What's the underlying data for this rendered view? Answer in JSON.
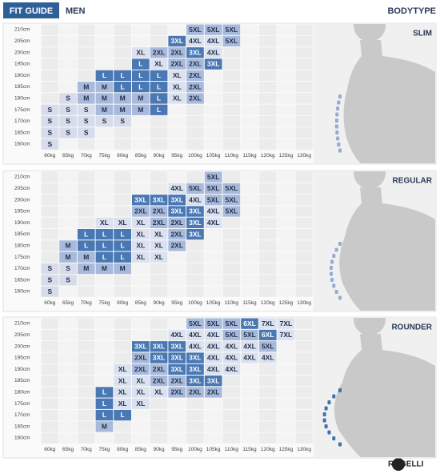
{
  "header": {
    "title": "FIT GUIDE",
    "subtitle": "MEN",
    "bodytype": "BODYTYPE"
  },
  "heights": [
    "210cm",
    "205cm",
    "200cm",
    "195cm",
    "190cm",
    "185cm",
    "180cm",
    "175cm",
    "170cm",
    "165cm",
    "160cm"
  ],
  "weights": [
    "60kg",
    "65kg",
    "70kg",
    "75kg",
    "80kg",
    "85kg",
    "90kg",
    "95kg",
    "100kg",
    "105kg",
    "110kg",
    "115kg",
    "120kg",
    "125kg",
    "130kg"
  ],
  "size_colors": {
    "S": "#d6dcea",
    "M": "#a8badb",
    "L": "#4a78b4",
    "XL": "#dbe1ee",
    "2XL": "#a8badb",
    "3XL": "#4a78b4",
    "4XL": "#dbe1ee",
    "5XL": "#a8badb",
    "6XL": "#4a78b4",
    "7XL": "#dbe1ee"
  },
  "panels": [
    {
      "title": "SLIM",
      "rows": [
        [
          null,
          null,
          null,
          null,
          null,
          null,
          null,
          null,
          "5XL",
          "5XL",
          "5XL",
          null,
          null,
          null,
          null
        ],
        [
          null,
          null,
          null,
          null,
          null,
          null,
          null,
          "3XL",
          "4XL",
          "4XL",
          "5XL",
          null,
          null,
          null,
          null
        ],
        [
          null,
          null,
          null,
          null,
          null,
          "XL",
          "2XL",
          "2XL",
          "3XL",
          "4XL",
          null,
          null,
          null,
          null,
          null
        ],
        [
          null,
          null,
          null,
          null,
          null,
          "L",
          "XL",
          "2XL",
          "2XL",
          "3XL",
          null,
          null,
          null,
          null,
          null
        ],
        [
          null,
          null,
          null,
          "L",
          "L",
          "L",
          "L",
          "XL",
          "2XL",
          null,
          null,
          null,
          null,
          null,
          null
        ],
        [
          null,
          null,
          "M",
          "M",
          "L",
          "L",
          "L",
          "XL",
          "2XL",
          null,
          null,
          null,
          null,
          null,
          null
        ],
        [
          null,
          "S",
          "M",
          "M",
          "M",
          "M",
          "L",
          "XL",
          "2XL",
          null,
          null,
          null,
          null,
          null,
          null
        ],
        [
          "S",
          "S",
          "S",
          "M",
          "M",
          "M",
          "L",
          null,
          null,
          null,
          null,
          null,
          null,
          null,
          null
        ],
        [
          "S",
          "S",
          "S",
          "S",
          "S",
          null,
          null,
          null,
          null,
          null,
          null,
          null,
          null,
          null,
          null
        ],
        [
          "S",
          "S",
          "S",
          null,
          null,
          null,
          null,
          null,
          null,
          null,
          null,
          null,
          null,
          null,
          null
        ],
        [
          "S",
          null,
          null,
          null,
          null,
          null,
          null,
          null,
          null,
          null,
          null,
          null,
          null,
          null,
          null
        ]
      ]
    },
    {
      "title": "REGULAR",
      "rows": [
        [
          null,
          null,
          null,
          null,
          null,
          null,
          null,
          null,
          null,
          "5XL",
          null,
          null,
          null,
          null,
          null
        ],
        [
          null,
          null,
          null,
          null,
          null,
          null,
          null,
          "4XL",
          "5XL",
          "5XL",
          "5XL",
          null,
          null,
          null,
          null
        ],
        [
          null,
          null,
          null,
          null,
          null,
          "3XL",
          "3XL",
          "3XL",
          "4XL",
          "5XL",
          "5XL",
          null,
          null,
          null,
          null
        ],
        [
          null,
          null,
          null,
          null,
          null,
          "2XL",
          "2XL",
          "3XL",
          "3XL",
          "4XL",
          "5XL",
          null,
          null,
          null,
          null
        ],
        [
          null,
          null,
          null,
          "XL",
          "XL",
          "XL",
          "2XL",
          "2XL",
          "3XL",
          "4XL",
          null,
          null,
          null,
          null,
          null
        ],
        [
          null,
          null,
          "L",
          "L",
          "L",
          "XL",
          "XL",
          "2XL",
          "3XL",
          null,
          null,
          null,
          null,
          null,
          null
        ],
        [
          null,
          "M",
          "L",
          "L",
          "L",
          "XL",
          "XL",
          "2XL",
          null,
          null,
          null,
          null,
          null,
          null,
          null
        ],
        [
          null,
          "M",
          "M",
          "L",
          "L",
          "XL",
          "XL",
          null,
          null,
          null,
          null,
          null,
          null,
          null,
          null
        ],
        [
          "S",
          "S",
          "M",
          "M",
          "M",
          null,
          null,
          null,
          null,
          null,
          null,
          null,
          null,
          null,
          null
        ],
        [
          "S",
          "S",
          null,
          null,
          null,
          null,
          null,
          null,
          null,
          null,
          null,
          null,
          null,
          null,
          null
        ],
        [
          "S",
          null,
          null,
          null,
          null,
          null,
          null,
          null,
          null,
          null,
          null,
          null,
          null,
          null,
          null
        ]
      ]
    },
    {
      "title": "ROUNDER",
      "rows": [
        [
          null,
          null,
          null,
          null,
          null,
          null,
          null,
          null,
          "5XL",
          "5XL",
          "5XL",
          "6XL",
          "7XL",
          "7XL",
          null
        ],
        [
          null,
          null,
          null,
          null,
          null,
          null,
          null,
          "4XL",
          "4XL",
          "4XL",
          "5XL",
          "5XL",
          "6XL",
          "7XL",
          null
        ],
        [
          null,
          null,
          null,
          null,
          null,
          "3XL",
          "3XL",
          "3XL",
          "4XL",
          "4XL",
          "4XL",
          "4XL",
          "5XL",
          null,
          null
        ],
        [
          null,
          null,
          null,
          null,
          null,
          "2XL",
          "3XL",
          "3XL",
          "3XL",
          "4XL",
          "4XL",
          "4XL",
          "4XL",
          null,
          null
        ],
        [
          null,
          null,
          null,
          null,
          "XL",
          "2XL",
          "2XL",
          "3XL",
          "3XL",
          "4XL",
          "4XL",
          null,
          null,
          null,
          null
        ],
        [
          null,
          null,
          null,
          null,
          "XL",
          "XL",
          "2XL",
          "2XL",
          "3XL",
          "3XL",
          null,
          null,
          null,
          null,
          null
        ],
        [
          null,
          null,
          null,
          "L",
          "XL",
          "XL",
          "XL",
          "2XL",
          "2XL",
          "2XL",
          null,
          null,
          null,
          null,
          null
        ],
        [
          null,
          null,
          null,
          "L",
          "XL",
          "XL",
          null,
          null,
          null,
          null,
          null,
          null,
          null,
          null,
          null
        ],
        [
          null,
          null,
          null,
          "L",
          "L",
          null,
          null,
          null,
          null,
          null,
          null,
          null,
          null,
          null,
          null
        ],
        [
          null,
          null,
          null,
          "M",
          null,
          null,
          null,
          null,
          null,
          null,
          null,
          null,
          null,
          null,
          null
        ],
        [
          null,
          null,
          null,
          null,
          null,
          null,
          null,
          null,
          null,
          null,
          null,
          null,
          null,
          null,
          null
        ]
      ]
    }
  ],
  "footer": {
    "brand": "ROGELLI"
  }
}
